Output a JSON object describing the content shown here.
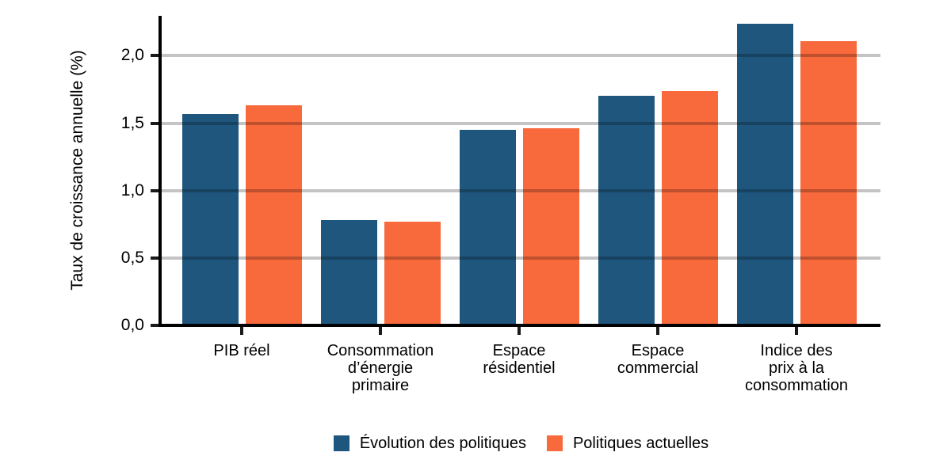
{
  "chart_data": {
    "type": "bar",
    "title": "",
    "xlabel": "",
    "ylabel": "Taux de croissance annuelle (%)",
    "ylim": [
      0,
      2.3
    ],
    "grid": true,
    "legend_position": "bottom",
    "yticks": [
      0.0,
      0.5,
      1.0,
      1.5,
      2.0
    ],
    "ytick_labels": [
      "0,0",
      "0,5",
      "1,0",
      "1,5",
      "2,0"
    ],
    "grid_values": [
      0.5,
      1.0,
      1.5,
      2.0
    ],
    "categories": [
      "PIB réel",
      "Consommation\nd’énergie\nprimaire",
      "Espace\nrésidentiel",
      "Espace\ncommercial",
      "Indice des\nprix à la\nconsommation"
    ],
    "series": [
      {
        "name": "Évolution des politiques",
        "color": "#1E567D",
        "values": [
          1.57,
          0.78,
          1.45,
          1.7,
          2.24
        ]
      },
      {
        "name": "Politiques actuelles",
        "color": "#F8693C",
        "values": [
          1.63,
          0.77,
          1.46,
          1.74,
          2.11
        ]
      }
    ],
    "colors": {
      "axis": "#000000",
      "gridline_over_white": "#C4C4C4",
      "tick": "#1A1A1A",
      "text": "#000000",
      "background": "#FFFFFF"
    }
  }
}
